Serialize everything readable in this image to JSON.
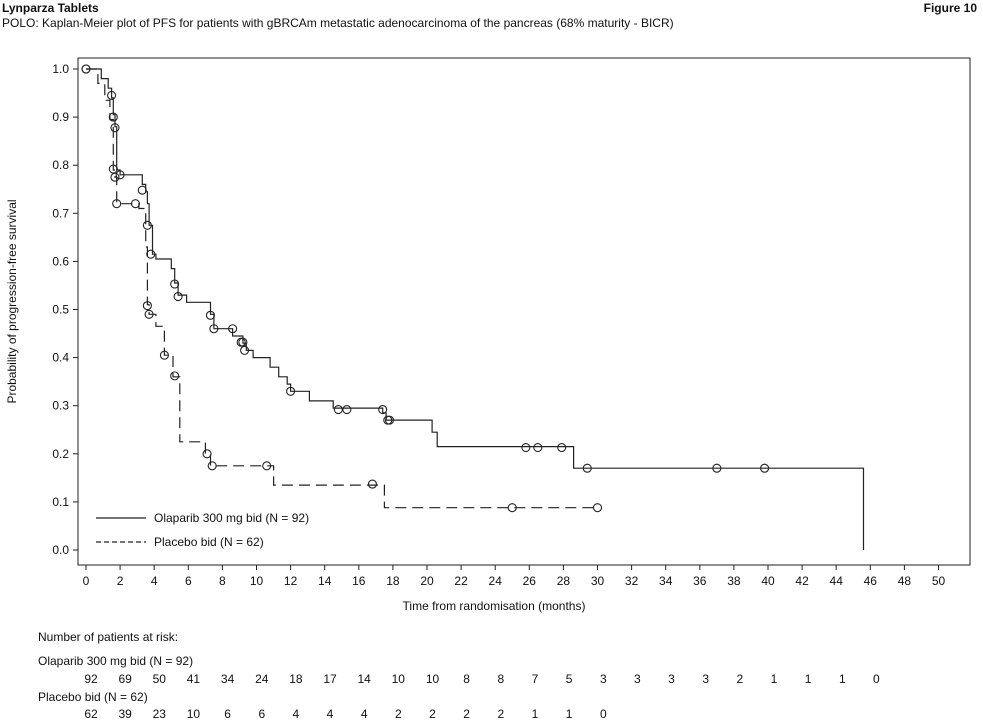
{
  "header": {
    "doc_title": "Lynparza Tablets",
    "figure_label": "Figure 10",
    "subtitle": "POLO: Kaplan-Meier plot of PFS for patients with gBRCAm metastatic adenocarcinoma of the pancreas (68% maturity - BICR)"
  },
  "chart_data": {
    "type": "line",
    "title": "",
    "xlabel": "Time from randomisation (months)",
    "ylabel": "Probability of progression-free survival",
    "xlim": [
      0,
      51
    ],
    "ylim": [
      0,
      1.0
    ],
    "x_ticks": [
      0,
      2,
      4,
      6,
      8,
      10,
      12,
      14,
      16,
      18,
      20,
      22,
      24,
      26,
      28,
      30,
      32,
      34,
      36,
      38,
      40,
      42,
      44,
      46,
      48,
      50
    ],
    "y_ticks": [
      0.0,
      0.1,
      0.2,
      0.3,
      0.4,
      0.5,
      0.6,
      0.7,
      0.8,
      0.9,
      1.0
    ],
    "y_tick_labels": [
      "0.0",
      "0.1",
      "0.2",
      "0.3",
      "0.4",
      "0.5",
      "0.6",
      "0.7",
      "0.8",
      "0.9",
      "1.0"
    ],
    "grid": false,
    "legend_position": "bottom-left",
    "series": [
      {
        "name": "Olaparib 300 mg bid (N = 92)",
        "line_style": "solid",
        "steps": [
          [
            0,
            1.0
          ],
          [
            0.9,
            1.0
          ],
          [
            0.9,
            0.98
          ],
          [
            1.3,
            0.98
          ],
          [
            1.3,
            0.96
          ],
          [
            1.5,
            0.96
          ],
          [
            1.5,
            0.94
          ],
          [
            1.6,
            0.94
          ],
          [
            1.6,
            0.905
          ],
          [
            1.7,
            0.905
          ],
          [
            1.7,
            0.88
          ],
          [
            1.8,
            0.88
          ],
          [
            1.8,
            0.79
          ],
          [
            2.0,
            0.79
          ],
          [
            2.0,
            0.78
          ],
          [
            3.3,
            0.78
          ],
          [
            3.3,
            0.76
          ],
          [
            3.5,
            0.76
          ],
          [
            3.5,
            0.745
          ],
          [
            3.6,
            0.745
          ],
          [
            3.6,
            0.72
          ],
          [
            3.7,
            0.72
          ],
          [
            3.7,
            0.675
          ],
          [
            3.9,
            0.675
          ],
          [
            3.9,
            0.615
          ],
          [
            4.1,
            0.615
          ],
          [
            4.1,
            0.605
          ],
          [
            5.0,
            0.605
          ],
          [
            5.0,
            0.585
          ],
          [
            5.2,
            0.585
          ],
          [
            5.2,
            0.555
          ],
          [
            5.4,
            0.555
          ],
          [
            5.4,
            0.53
          ],
          [
            5.9,
            0.53
          ],
          [
            5.9,
            0.515
          ],
          [
            7.3,
            0.515
          ],
          [
            7.3,
            0.49
          ],
          [
            7.5,
            0.49
          ],
          [
            7.5,
            0.46
          ],
          [
            8.6,
            0.46
          ],
          [
            8.6,
            0.445
          ],
          [
            9.2,
            0.445
          ],
          [
            9.2,
            0.43
          ],
          [
            9.4,
            0.43
          ],
          [
            9.4,
            0.415
          ],
          [
            9.8,
            0.415
          ],
          [
            9.8,
            0.4
          ],
          [
            10.8,
            0.4
          ],
          [
            10.8,
            0.38
          ],
          [
            11.3,
            0.38
          ],
          [
            11.3,
            0.36
          ],
          [
            11.8,
            0.36
          ],
          [
            11.8,
            0.345
          ],
          [
            12.0,
            0.345
          ],
          [
            12.0,
            0.33
          ],
          [
            13.1,
            0.33
          ],
          [
            13.1,
            0.31
          ],
          [
            14.5,
            0.31
          ],
          [
            14.5,
            0.295
          ],
          [
            17.4,
            0.295
          ],
          [
            17.4,
            0.285
          ],
          [
            17.6,
            0.285
          ],
          [
            17.6,
            0.27
          ],
          [
            20.3,
            0.27
          ],
          [
            20.3,
            0.245
          ],
          [
            20.6,
            0.245
          ],
          [
            20.6,
            0.215
          ],
          [
            28.6,
            0.215
          ],
          [
            28.6,
            0.17
          ],
          [
            45.6,
            0.17
          ],
          [
            45.6,
            0.0
          ]
        ],
        "censored": [
          [
            0,
            1.0
          ],
          [
            1.5,
            0.945
          ],
          [
            1.6,
            0.9
          ],
          [
            1.7,
            0.878
          ],
          [
            2.0,
            0.78
          ],
          [
            3.3,
            0.748
          ],
          [
            3.6,
            0.675
          ],
          [
            3.8,
            0.615
          ],
          [
            5.2,
            0.553
          ],
          [
            5.4,
            0.527
          ],
          [
            7.3,
            0.488
          ],
          [
            7.5,
            0.46
          ],
          [
            8.6,
            0.46
          ],
          [
            9.1,
            0.432
          ],
          [
            9.2,
            0.432
          ],
          [
            9.3,
            0.415
          ],
          [
            12.0,
            0.33
          ],
          [
            14.8,
            0.292
          ],
          [
            15.3,
            0.292
          ],
          [
            17.4,
            0.292
          ],
          [
            17.7,
            0.27
          ],
          [
            17.8,
            0.27
          ],
          [
            25.8,
            0.213
          ],
          [
            26.5,
            0.213
          ],
          [
            27.9,
            0.213
          ],
          [
            29.4,
            0.17
          ],
          [
            37.0,
            0.17
          ],
          [
            39.8,
            0.17
          ]
        ]
      },
      {
        "name": "Placebo bid (N = 62)",
        "line_style": "dashed",
        "steps": [
          [
            0,
            1.0
          ],
          [
            0.7,
            1.0
          ],
          [
            0.7,
            0.97
          ],
          [
            1.1,
            0.97
          ],
          [
            1.1,
            0.935
          ],
          [
            1.4,
            0.935
          ],
          [
            1.4,
            0.895
          ],
          [
            1.6,
            0.895
          ],
          [
            1.6,
            0.79
          ],
          [
            1.7,
            0.79
          ],
          [
            1.7,
            0.775
          ],
          [
            1.8,
            0.775
          ],
          [
            1.8,
            0.72
          ],
          [
            3.1,
            0.72
          ],
          [
            3.1,
            0.71
          ],
          [
            3.5,
            0.71
          ],
          [
            3.5,
            0.63
          ],
          [
            3.6,
            0.63
          ],
          [
            3.6,
            0.51
          ],
          [
            3.7,
            0.51
          ],
          [
            3.7,
            0.49
          ],
          [
            4.1,
            0.49
          ],
          [
            4.1,
            0.465
          ],
          [
            4.6,
            0.465
          ],
          [
            4.6,
            0.405
          ],
          [
            5.1,
            0.405
          ],
          [
            5.1,
            0.36
          ],
          [
            5.5,
            0.36
          ],
          [
            5.5,
            0.225
          ],
          [
            7.0,
            0.225
          ],
          [
            7.0,
            0.2
          ],
          [
            7.3,
            0.2
          ],
          [
            7.3,
            0.175
          ],
          [
            11.0,
            0.175
          ],
          [
            11.0,
            0.135
          ],
          [
            17.5,
            0.135
          ],
          [
            17.5,
            0.088
          ],
          [
            30.0,
            0.088
          ]
        ],
        "censored": [
          [
            0,
            1.0
          ],
          [
            1.6,
            0.792
          ],
          [
            1.7,
            0.775
          ],
          [
            1.8,
            0.72
          ],
          [
            2.9,
            0.72
          ],
          [
            3.6,
            0.508
          ],
          [
            3.7,
            0.49
          ],
          [
            4.6,
            0.405
          ],
          [
            5.2,
            0.362
          ],
          [
            7.1,
            0.2
          ],
          [
            7.4,
            0.175
          ],
          [
            10.6,
            0.175
          ],
          [
            16.8,
            0.137
          ],
          [
            25.0,
            0.088
          ],
          [
            30.0,
            0.088
          ]
        ]
      }
    ]
  },
  "risk_table": {
    "heading": "Number of patients at risk:",
    "rows": [
      {
        "label": "Olaparib 300 mg bid (N = 92)",
        "values": [
          "92",
          "69",
          "50",
          "41",
          "34",
          "24",
          "18",
          "17",
          "14",
          "10",
          "10",
          "8",
          "8",
          "7",
          "5",
          "3",
          "3",
          "3",
          "3",
          "2",
          "1",
          "1",
          "1",
          "0"
        ]
      },
      {
        "label": "Placebo bid (N = 62)",
        "values": [
          "62",
          "39",
          "23",
          "10",
          "6",
          "6",
          "4",
          "4",
          "4",
          "2",
          "2",
          "2",
          "2",
          "1",
          "1",
          "0"
        ]
      }
    ]
  }
}
